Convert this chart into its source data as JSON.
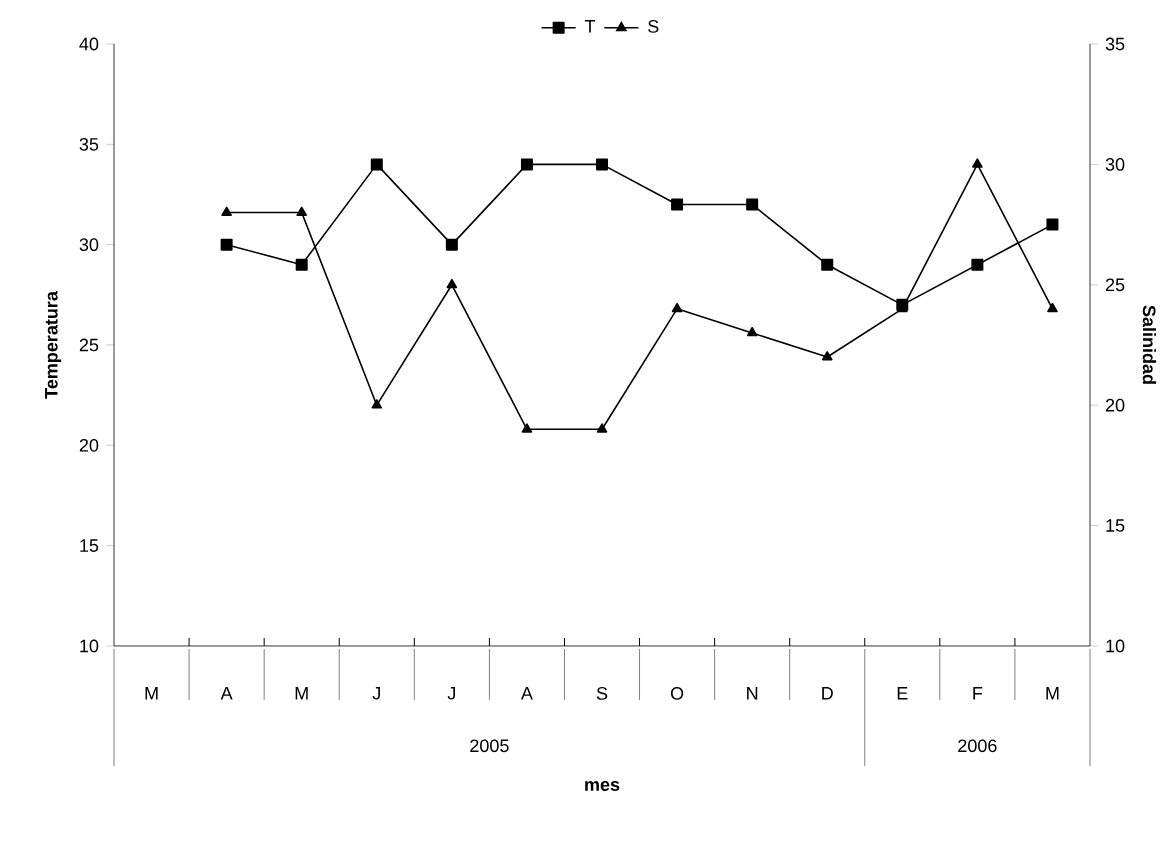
{
  "chart_data": {
    "type": "line",
    "xlabel": "mes",
    "ylabel": "Temperatura",
    "y2label": "Salinidad",
    "categories": [
      "M",
      "A",
      "M",
      "J",
      "J",
      "A",
      "S",
      "O",
      "N",
      "D",
      "E",
      "F",
      "M"
    ],
    "series": [
      {
        "name": "T",
        "color": "#000000",
        "marker": "square",
        "values": [
          null,
          30,
          29,
          34,
          30,
          34,
          34,
          32,
          32,
          29,
          27,
          29,
          31
        ]
      },
      {
        "name": "S",
        "color": "#000000",
        "marker": "triangle",
        "axis": "y2",
        "values": [
          null,
          28,
          28,
          20,
          25,
          19,
          19,
          24,
          23,
          22,
          24,
          30,
          24
        ]
      }
    ],
    "ylim": [
      10,
      40
    ],
    "yticks": [
      10,
      15,
      20,
      25,
      30,
      35,
      40
    ],
    "y2lim": [
      10,
      35
    ],
    "y2ticks": [
      10,
      15,
      20,
      25,
      30,
      35
    ],
    "annotations": [
      "2005",
      "2006"
    ],
    "legend": "top",
    "grid": false,
    "line_style": "solid"
  }
}
